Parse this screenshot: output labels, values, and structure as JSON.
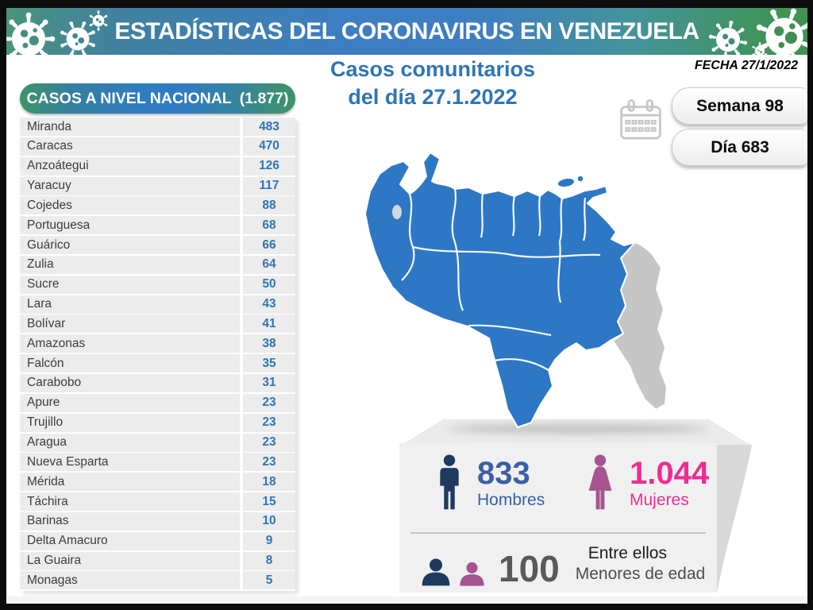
{
  "header": {
    "title": "ESTADÍSTICAS DEL CORONAVIRUS EN VENEZUELA"
  },
  "subtitle": {
    "line1": "Casos comunitarios",
    "line2": "del día 27.1.2022"
  },
  "date_panel": {
    "fecha": "FECHA 27/1/2022",
    "semana": "Semana 98",
    "dia": "Día 683"
  },
  "national_cases": {
    "title": "CASOS A NIVEL NACIONAL",
    "total": "(1.877)",
    "rows": [
      {
        "state": "Miranda",
        "value": "483"
      },
      {
        "state": "Caracas",
        "value": "470"
      },
      {
        "state": "Anzoátegui",
        "value": "126"
      },
      {
        "state": "Yaracuy",
        "value": "117"
      },
      {
        "state": "Cojedes",
        "value": "88"
      },
      {
        "state": "Portuguesa",
        "value": "68"
      },
      {
        "state": "Guárico",
        "value": "66"
      },
      {
        "state": "Zulia",
        "value": "64"
      },
      {
        "state": "Sucre",
        "value": "50"
      },
      {
        "state": "Lara",
        "value": "43"
      },
      {
        "state": "Bolívar",
        "value": "41"
      },
      {
        "state": "Amazonas",
        "value": "38"
      },
      {
        "state": "Falcón",
        "value": "35"
      },
      {
        "state": "Carabobo",
        "value": "31"
      },
      {
        "state": "Apure",
        "value": "23"
      },
      {
        "state": "Trujillo",
        "value": "23"
      },
      {
        "state": "Aragua",
        "value": "23"
      },
      {
        "state": "Nueva Esparta",
        "value": "23"
      },
      {
        "state": "Mérida",
        "value": "18"
      },
      {
        "state": "Táchira",
        "value": "15"
      },
      {
        "state": "Barinas",
        "value": "10"
      },
      {
        "state": "Delta Amacuro",
        "value": "9"
      },
      {
        "state": "La Guaira",
        "value": "8"
      },
      {
        "state": "Monagas",
        "value": "5"
      }
    ]
  },
  "stats": {
    "hombres": {
      "value": "833",
      "label": "Hombres",
      "text_color": "#3b5ea9",
      "icon_color": "#1e3a5f"
    },
    "mujeres": {
      "value": "1.044",
      "label": "Mujeres",
      "text_color": "#ee2d93",
      "icon_color": "#a65390"
    },
    "menores": {
      "value": "100",
      "line1": "Entre ellos",
      "line2": "Menores de edad",
      "text_color": "#58595b"
    }
  },
  "map": {
    "label": "venezuela-map",
    "fill": "#2e77c5",
    "disputed_fill": "#c6c6c6",
    "border_color": "#ffffff"
  },
  "colors": {
    "accent_blue": "#2e75b6",
    "band_blue": "#3d7dc4",
    "band_green": "#3f9355",
    "band_teal": "#48947b",
    "row_gray": "#ececec"
  },
  "chart_data": {
    "type": "table",
    "title": "CASOS A NIVEL NACIONAL (1.877)",
    "subtitle": "Casos comunitarios del día 27.1.2022",
    "categories": [
      "Miranda",
      "Caracas",
      "Anzoátegui",
      "Yaracuy",
      "Cojedes",
      "Portuguesa",
      "Guárico",
      "Zulia",
      "Sucre",
      "Lara",
      "Bolívar",
      "Amazonas",
      "Falcón",
      "Carabobo",
      "Apure",
      "Trujillo",
      "Aragua",
      "Nueva Esparta",
      "Mérida",
      "Táchira",
      "Barinas",
      "Delta Amacuro",
      "La Guaira",
      "Monagas"
    ],
    "values": [
      483,
      470,
      126,
      117,
      88,
      68,
      66,
      64,
      50,
      43,
      41,
      38,
      35,
      31,
      23,
      23,
      23,
      23,
      18,
      15,
      10,
      9,
      8,
      5
    ],
    "total": 1877,
    "breakdown": {
      "hombres": 833,
      "mujeres": 1044,
      "menores_de_edad": 100
    },
    "fecha": "27/1/2022",
    "semana": 98,
    "dia": 683
  }
}
